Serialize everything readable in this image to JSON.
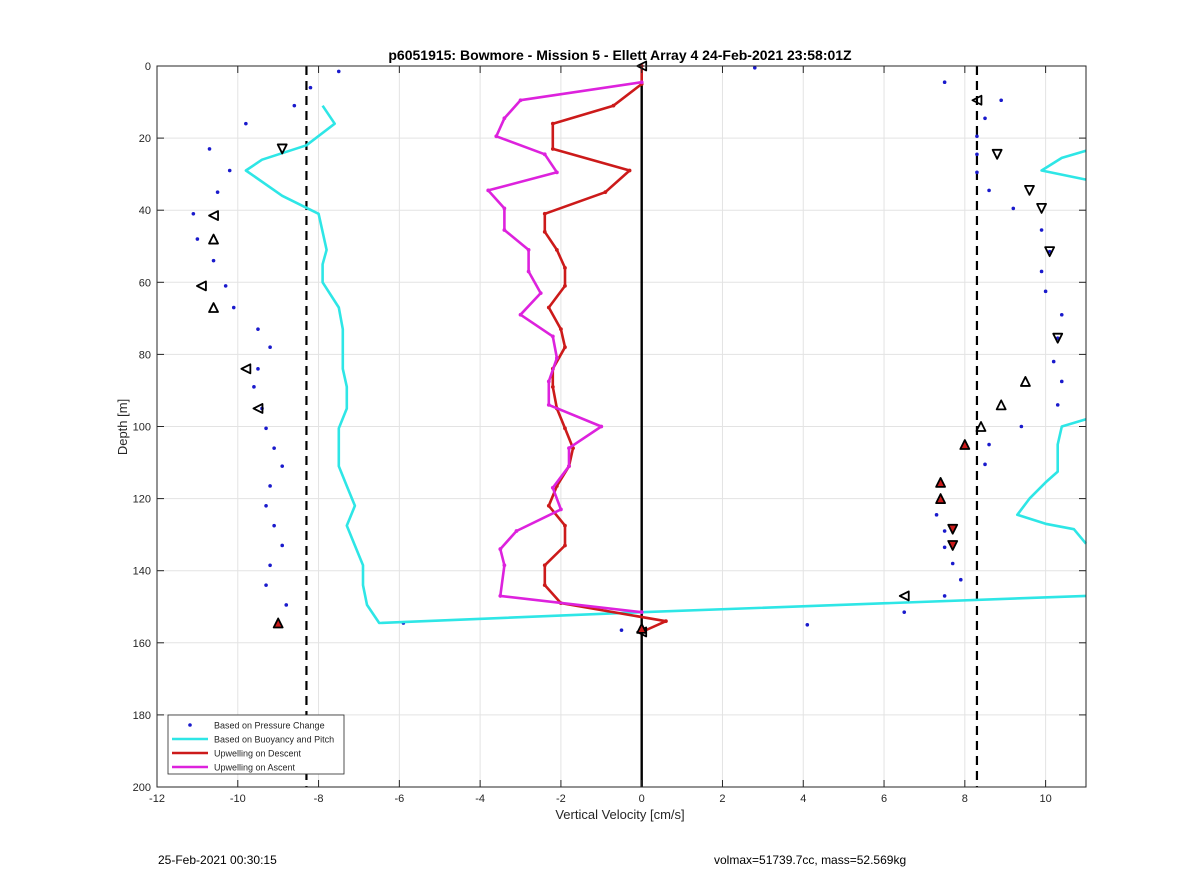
{
  "footer": {
    "timestamp": "25-Feb-2021 00:30:15",
    "info": "volmax=51739.7cc, mass=52.569kg"
  },
  "chart_data": {
    "type": "line",
    "title": "p6051915: Bowmore - Mission 5 - Ellett Array 4 24-Feb-2021 23:58:01Z",
    "xlabel": "Vertical Velocity [cm/s]",
    "ylabel": "Depth [m]",
    "xlim": [
      -12,
      11
    ],
    "ylim": [
      0,
      200
    ],
    "y_reversed": true,
    "grid": true,
    "legend_position": "bottom-left",
    "x_ticks": [
      -12,
      -10,
      -8,
      -6,
      -4,
      -2,
      0,
      2,
      4,
      6,
      8,
      10
    ],
    "y_ticks": [
      0,
      20,
      40,
      60,
      80,
      100,
      120,
      140,
      160,
      180,
      200
    ],
    "colors": {
      "pressure": "#1a1acc",
      "buoyancy": "#2ee6e6",
      "descent": "#cc1a1a",
      "ascent": "#dd22dd",
      "reference": "#000000"
    },
    "reference_lines": {
      "zero": 0,
      "dashed": [
        -8.3,
        8.3
      ]
    },
    "series": [
      {
        "name": "Based on Pressure Change",
        "style": "dots",
        "points": [
          [
            -7.5,
            1.5
          ],
          [
            -8.2,
            6
          ],
          [
            -8.6,
            11
          ],
          [
            -9.8,
            16
          ],
          [
            -10.7,
            23
          ],
          [
            -10.2,
            29
          ],
          [
            -10.5,
            35
          ],
          [
            -11.1,
            41
          ],
          [
            -11.0,
            48
          ],
          [
            -10.6,
            54
          ],
          [
            -10.3,
            61
          ],
          [
            -10.1,
            67
          ],
          [
            -9.5,
            73
          ],
          [
            -9.2,
            78
          ],
          [
            -9.5,
            84
          ],
          [
            -9.6,
            89
          ],
          [
            -9.4,
            95
          ],
          [
            -9.3,
            100.5
          ],
          [
            -9.1,
            106
          ],
          [
            -8.9,
            111
          ],
          [
            -9.2,
            116.5
          ],
          [
            -9.3,
            122
          ],
          [
            -9.1,
            127.5
          ],
          [
            -8.9,
            133
          ],
          [
            -9.2,
            138.5
          ],
          [
            -9.3,
            144
          ],
          [
            -8.8,
            149.5
          ],
          [
            -9.0,
            154.5
          ],
          [
            -5.9,
            154.5
          ],
          [
            -0.5,
            156.5
          ],
          [
            0.0,
            157
          ],
          [
            4.1,
            155
          ],
          [
            2.8,
            0.5
          ],
          [
            7.5,
            4.5
          ],
          [
            8.9,
            9.5
          ],
          [
            8.5,
            14.5
          ],
          [
            8.3,
            19.5
          ],
          [
            8.3,
            24.5
          ],
          [
            8.3,
            29.5
          ],
          [
            8.6,
            34.5
          ],
          [
            9.2,
            39.5
          ],
          [
            9.9,
            45.5
          ],
          [
            10.1,
            51.5
          ],
          [
            9.9,
            57
          ],
          [
            10.0,
            62.5
          ],
          [
            10.4,
            69
          ],
          [
            10.3,
            75.5
          ],
          [
            10.2,
            82
          ],
          [
            10.4,
            87.5
          ],
          [
            10.3,
            94
          ],
          [
            9.4,
            100
          ],
          [
            8.6,
            105
          ],
          [
            8.5,
            110.5
          ],
          [
            7.4,
            115.5
          ],
          [
            7.4,
            120
          ],
          [
            7.3,
            124.5
          ],
          [
            7.5,
            129
          ],
          [
            7.5,
            133.5
          ],
          [
            7.7,
            138
          ],
          [
            7.9,
            142.5
          ],
          [
            7.5,
            147
          ],
          [
            6.5,
            151.5
          ]
        ]
      },
      {
        "name": "Based on Buoyancy and Pitch",
        "style": "line",
        "segments": [
          [
            [
              -7.9,
              11
            ],
            [
              -7.6,
              16
            ],
            [
              -8.3,
              22
            ],
            [
              -9.4,
              26
            ],
            [
              -9.8,
              29
            ],
            [
              -8.9,
              36
            ],
            [
              -8.0,
              41
            ],
            [
              -7.9,
              46
            ],
            [
              -7.8,
              51
            ],
            [
              -7.9,
              55
            ],
            [
              -7.9,
              60
            ],
            [
              -7.5,
              67
            ],
            [
              -7.4,
              73
            ],
            [
              -7.4,
              78
            ],
            [
              -7.4,
              84
            ],
            [
              -7.3,
              89
            ],
            [
              -7.3,
              95
            ],
            [
              -7.5,
              100.5
            ],
            [
              -7.5,
              106
            ],
            [
              -7.5,
              111
            ],
            [
              -7.3,
              116.5
            ],
            [
              -7.1,
              122
            ],
            [
              -7.3,
              127.5
            ],
            [
              -7.1,
              133
            ],
            [
              -6.9,
              138.5
            ],
            [
              -6.9,
              144
            ],
            [
              -6.8,
              149.5
            ],
            [
              -6.5,
              154.5
            ],
            [
              0.0,
              151.5
            ],
            [
              11,
              147
            ]
          ],
          [
            [
              11,
              23.5
            ],
            [
              10.4,
              25.5
            ],
            [
              9.9,
              29
            ],
            [
              11,
              31.5
            ]
          ],
          [
            [
              11,
              98
            ],
            [
              10.4,
              100
            ],
            [
              10.3,
              105
            ],
            [
              10.3,
              110.5
            ],
            [
              10.3,
              112.5
            ],
            [
              10.0,
              115.5
            ],
            [
              9.6,
              120
            ],
            [
              9.3,
              124.5
            ],
            [
              10.0,
              127
            ],
            [
              10.7,
              128.5
            ],
            [
              11,
              132.5
            ]
          ]
        ]
      },
      {
        "name": "Upwelling on Descent",
        "style": "line-dots",
        "points": [
          [
            0.0,
            0
          ],
          [
            0.0,
            5
          ],
          [
            -0.7,
            11
          ],
          [
            -2.2,
            16
          ],
          [
            -2.2,
            23
          ],
          [
            -0.3,
            29
          ],
          [
            -0.9,
            35
          ],
          [
            -2.4,
            41
          ],
          [
            -2.4,
            46
          ],
          [
            -2.1,
            51
          ],
          [
            -1.9,
            56
          ],
          [
            -1.9,
            61
          ],
          [
            -2.3,
            67
          ],
          [
            -2.0,
            73
          ],
          [
            -1.9,
            78
          ],
          [
            -2.2,
            84
          ],
          [
            -2.2,
            89
          ],
          [
            -2.1,
            95
          ],
          [
            -1.9,
            100.5
          ],
          [
            -1.7,
            106
          ],
          [
            -1.8,
            111
          ],
          [
            -2.1,
            116.5
          ],
          [
            -2.3,
            122
          ],
          [
            -1.9,
            127.5
          ],
          [
            -1.9,
            133
          ],
          [
            -2.4,
            138.5
          ],
          [
            -2.4,
            144
          ],
          [
            -2.0,
            149
          ],
          [
            0.6,
            154
          ],
          [
            0.0,
            157
          ]
        ]
      },
      {
        "name": "Upwelling on Ascent",
        "style": "line-dots",
        "points": [
          [
            0.0,
            4.5
          ],
          [
            -3.0,
            9.5
          ],
          [
            -3.4,
            14.5
          ],
          [
            -3.6,
            19.5
          ],
          [
            -2.4,
            24.5
          ],
          [
            -2.1,
            29.5
          ],
          [
            -3.8,
            34.5
          ],
          [
            -3.4,
            39.5
          ],
          [
            -3.4,
            45.5
          ],
          [
            -2.8,
            51
          ],
          [
            -2.8,
            57
          ],
          [
            -2.5,
            63
          ],
          [
            -3.0,
            69
          ],
          [
            -2.2,
            75
          ],
          [
            -2.1,
            81
          ],
          [
            -2.3,
            87.5
          ],
          [
            -2.3,
            94
          ],
          [
            -1.0,
            100
          ],
          [
            -1.8,
            106
          ],
          [
            -1.8,
            111
          ],
          [
            -2.2,
            117
          ],
          [
            -2.0,
            123
          ],
          [
            -3.1,
            129
          ],
          [
            -3.5,
            134
          ],
          [
            -3.4,
            138.5
          ],
          [
            -3.5,
            147
          ],
          [
            0.0,
            151.5
          ]
        ]
      }
    ],
    "markers": {
      "down_triangles": [
        [
          -8.9,
          23
        ],
        [
          8.8,
          24.5
        ],
        [
          9.6,
          34.5
        ],
        [
          9.9,
          39.5
        ],
        [
          10.1,
          51.5
        ],
        [
          10.3,
          75.5
        ],
        [
          7.7,
          128.5
        ],
        [
          7.7,
          133
        ]
      ],
      "left_triangles": [
        [
          0.0,
          0
        ],
        [
          8.3,
          9.5
        ],
        [
          -10.6,
          41.5
        ],
        [
          -10.9,
          61
        ],
        [
          -9.8,
          84
        ],
        [
          -9.5,
          95
        ],
        [
          6.5,
          147
        ],
        [
          0.0,
          157
        ]
      ],
      "up_triangles": [
        [
          -10.6,
          48
        ],
        [
          -10.6,
          67
        ],
        [
          9.5,
          87.5
        ],
        [
          8.9,
          94
        ],
        [
          8.4,
          100
        ],
        [
          8.0,
          105
        ],
        [
          7.4,
          115.5
        ],
        [
          7.4,
          120
        ],
        [
          -9.0,
          154.5
        ],
        [
          0.0,
          156
        ]
      ],
      "red_filled": [
        [
          8.0,
          105
        ],
        [
          7.4,
          115.5
        ],
        [
          7.4,
          120
        ],
        [
          7.7,
          128.5
        ],
        [
          7.7,
          133
        ],
        [
          -9.0,
          154.5
        ],
        [
          0.0,
          156
        ]
      ]
    }
  }
}
